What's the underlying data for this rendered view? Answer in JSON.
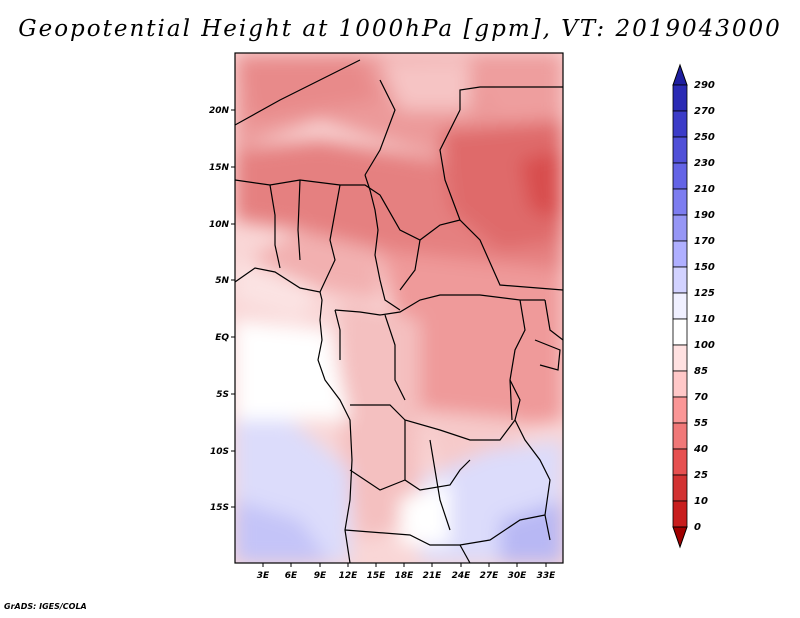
{
  "title": "Geopotential Height at 1000hPa [gpm], VT: 2019043000",
  "credit": "GrADS: IGES/COLA",
  "map": {
    "region": "Central and Southern Africa",
    "lat_labels": [
      "20N",
      "15N",
      "10N",
      "5N",
      "EQ",
      "5S",
      "10S",
      "15S"
    ],
    "lon_labels": [
      "3E",
      "6E",
      "9E",
      "12E",
      "15E",
      "18E",
      "21E",
      "24E",
      "27E",
      "30E",
      "33E"
    ],
    "extent": {
      "lon_min": 0,
      "lon_max": 35,
      "lat_min": -19,
      "lat_max": 25
    }
  },
  "colorbar": {
    "labels": [
      "290",
      "270",
      "250",
      "230",
      "210",
      "190",
      "170",
      "150",
      "125",
      "110",
      "100",
      "85",
      "70",
      "55",
      "40",
      "25",
      "10",
      "0"
    ],
    "colors": [
      "#1e1ea0",
      "#2a2ab4",
      "#3c3cc8",
      "#5050d8",
      "#6464e6",
      "#7d7df0",
      "#9696f5",
      "#afafff",
      "#d2d2ff",
      "#f0f0ff",
      "#ffffff",
      "#ffe1e1",
      "#ffc8c8",
      "#fa9696",
      "#f07878",
      "#e65050",
      "#d23232",
      "#c81e1e",
      "#a00000"
    ]
  }
}
